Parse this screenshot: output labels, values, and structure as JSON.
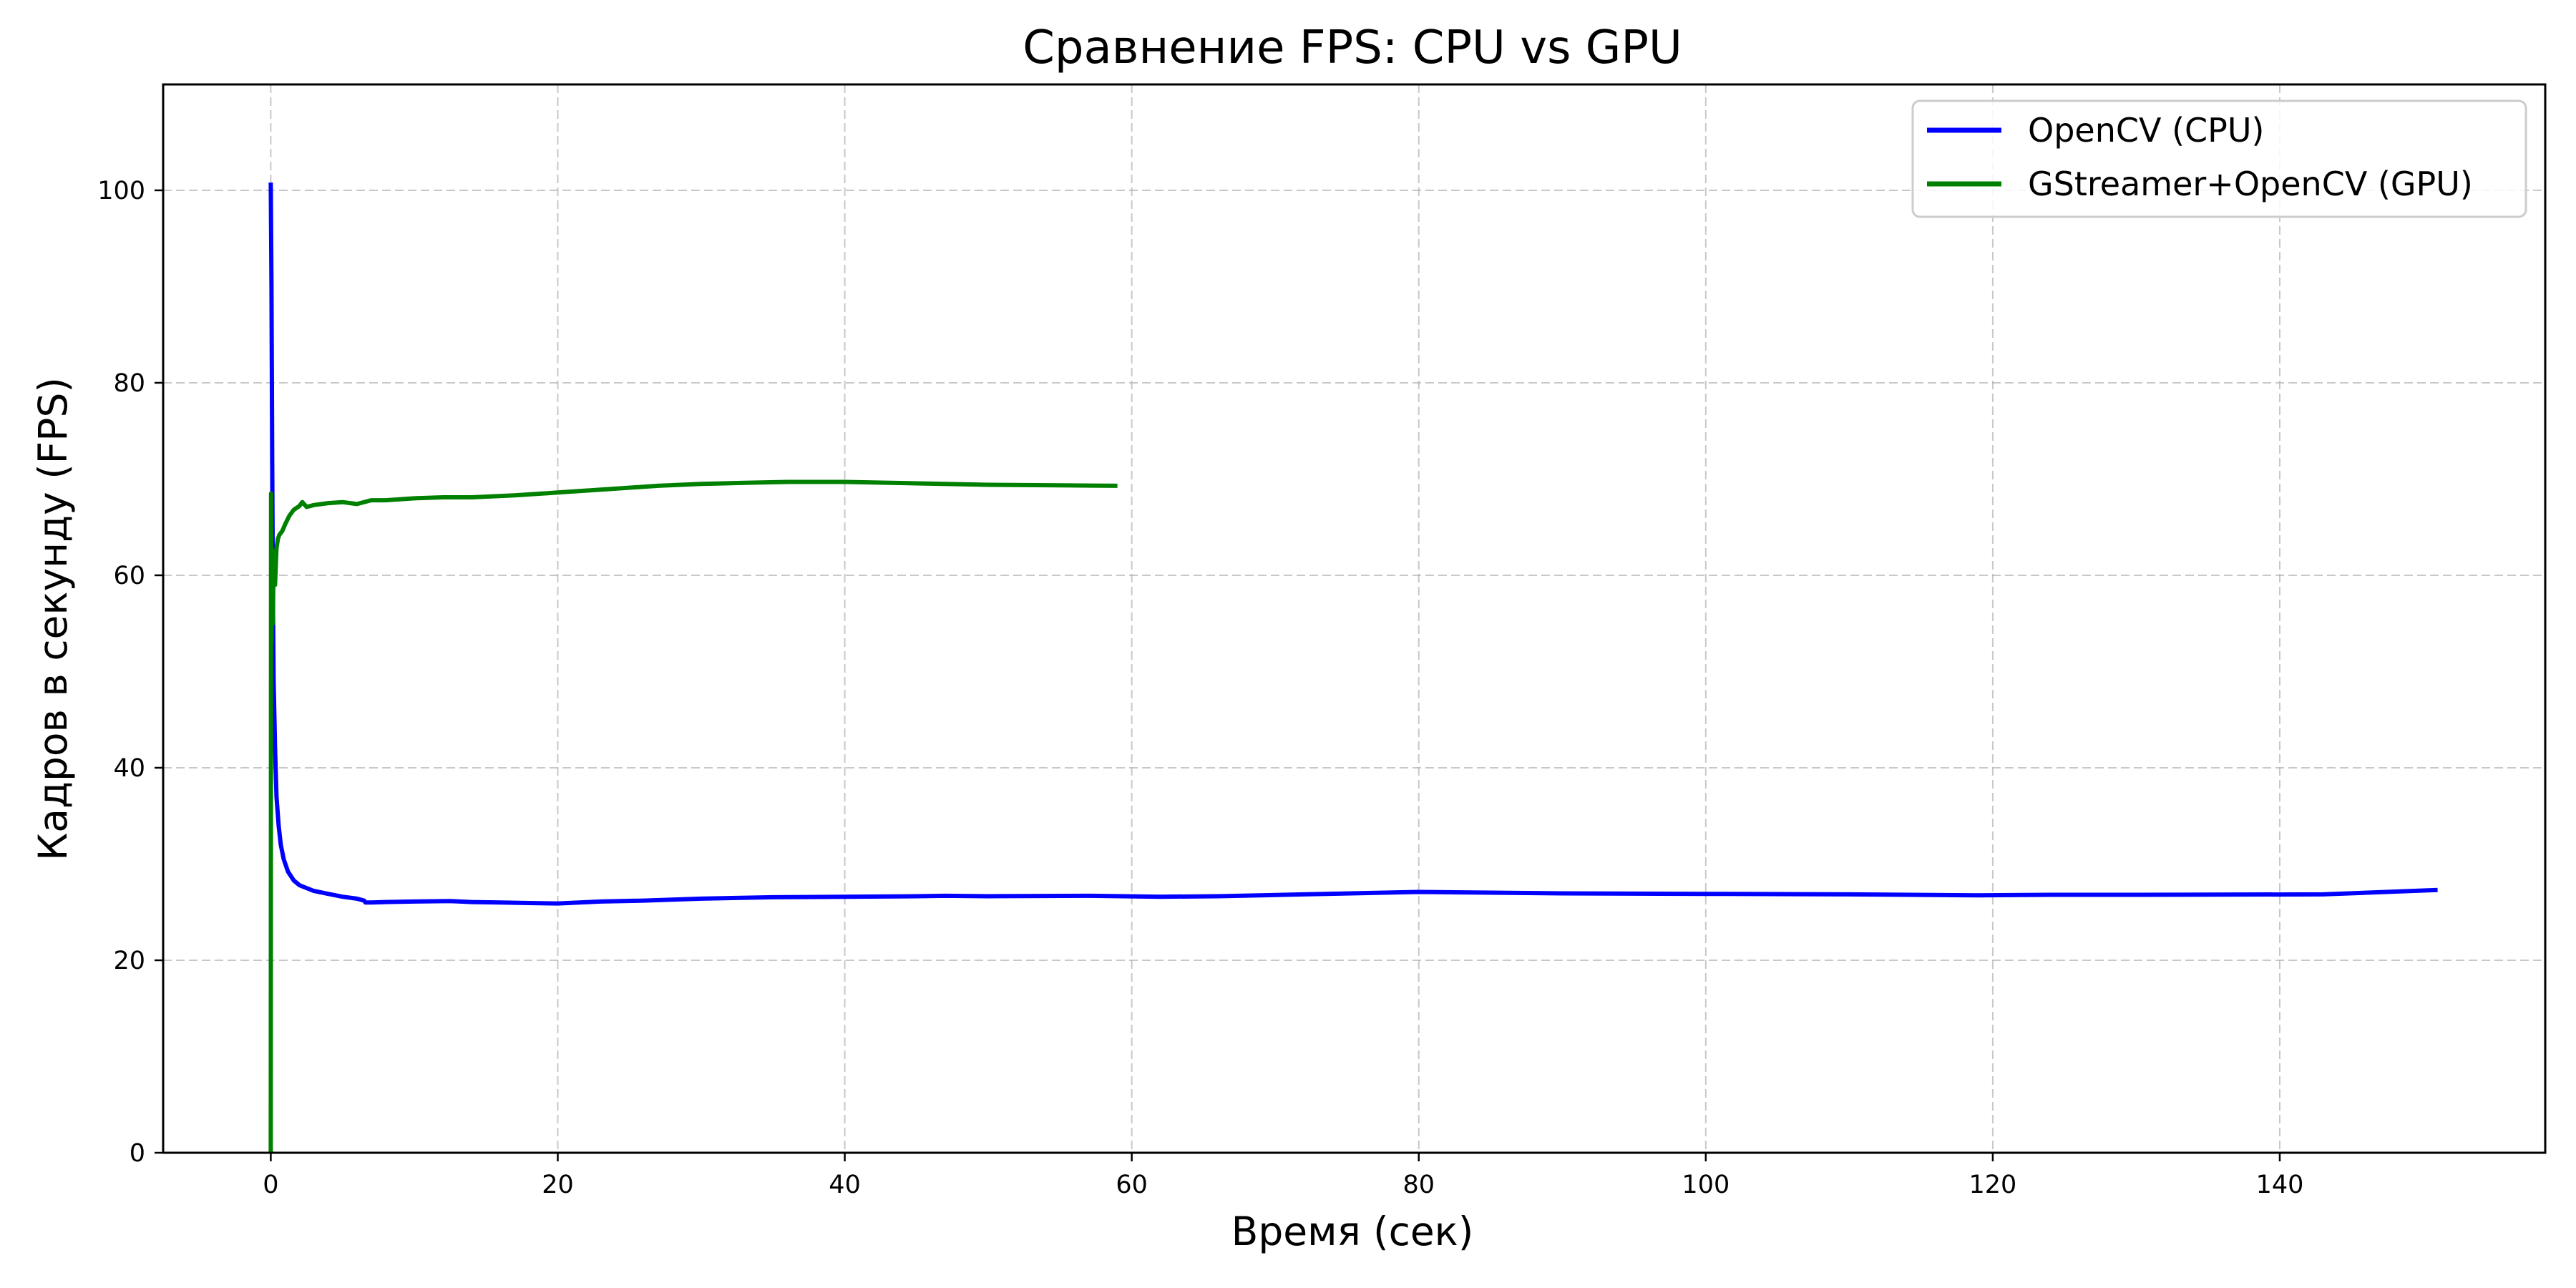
{
  "chart_data": {
    "type": "line",
    "title": "Сравнение FPS: CPU vs GPU",
    "xlabel": "Время (сек)",
    "ylabel": "Кадров в секунду (FPS)",
    "xlim": [
      -7.5,
      158.5
    ],
    "ylim": [
      0,
      111
    ],
    "xticks": [
      0,
      20,
      40,
      60,
      80,
      100,
      120,
      140
    ],
    "yticks": [
      0,
      20,
      40,
      60,
      80,
      100
    ],
    "grid": true,
    "legend_position": "top-right",
    "series": [
      {
        "name": "OpenCV (CPU)",
        "color": "#0000ff",
        "x": [
          0,
          0.05,
          0.1,
          0.15,
          0.2,
          0.3,
          0.4,
          0.55,
          0.7,
          0.9,
          1.2,
          1.6,
          2.0,
          3.0,
          4.0,
          5.0,
          6.0,
          6.5,
          6.6,
          7,
          8,
          10,
          12.5,
          14,
          16,
          18,
          20,
          23,
          26,
          30,
          35,
          40,
          45,
          47,
          50,
          57,
          62,
          66,
          72,
          80,
          90,
          100,
          110,
          119,
          124,
          130,
          143,
          151
        ],
        "y": [
          100.8,
          90,
          72,
          58,
          49,
          42,
          37,
          34,
          32,
          30.5,
          29.2,
          28.3,
          27.8,
          27.2,
          26.9,
          26.6,
          26.4,
          26.2,
          26.0,
          26.0,
          26.05,
          26.1,
          26.15,
          26.05,
          26.0,
          25.95,
          25.9,
          26.1,
          26.2,
          26.4,
          26.55,
          26.6,
          26.65,
          26.7,
          26.65,
          26.7,
          26.6,
          26.65,
          26.85,
          27.1,
          26.95,
          26.9,
          26.85,
          26.75,
          26.8,
          26.8,
          26.85,
          27.3
        ]
      },
      {
        "name": "GStreamer+OpenCV (GPU)",
        "color": "#008000",
        "x": [
          0,
          0.02,
          0.05,
          0.1,
          0.15,
          0.2,
          0.3,
          0.4,
          0.5,
          0.6,
          0.8,
          1.0,
          1.3,
          1.6,
          2.0,
          2.2,
          2.5,
          3.0,
          4.0,
          5.0,
          6.0,
          7.0,
          8.0,
          10.0,
          12.0,
          14.0,
          17.0,
          20.0,
          23.0,
          27.0,
          30.0,
          33.0,
          36.0,
          40.0,
          45.0,
          50.0,
          55.0,
          59.0
        ],
        "y": [
          0,
          68.5,
          53,
          61,
          55,
          62.5,
          59,
          62.8,
          63.8,
          64.2,
          64.6,
          65.3,
          66.2,
          66.8,
          67.2,
          67.6,
          67.1,
          67.3,
          67.5,
          67.6,
          67.4,
          67.8,
          67.8,
          68.0,
          68.1,
          68.1,
          68.3,
          68.6,
          68.9,
          69.3,
          69.5,
          69.6,
          69.7,
          69.7,
          69.55,
          69.4,
          69.35,
          69.3
        ]
      }
    ]
  }
}
